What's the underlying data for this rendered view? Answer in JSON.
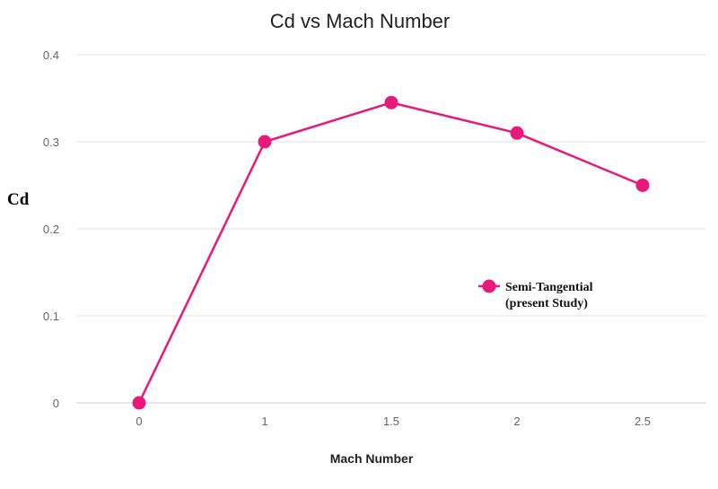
{
  "chart_data": {
    "type": "line",
    "title": "Cd vs Mach Number",
    "xlabel": "Mach Number",
    "ylabel": "Cd",
    "categories": [
      "0",
      "1",
      "1.5",
      "2",
      "2.5"
    ],
    "ylim": [
      0,
      0.4
    ],
    "yticks": [
      "0",
      "0.1",
      "0.2",
      "0.3",
      "0.4"
    ],
    "grid": true,
    "legend_position": "right",
    "series": [
      {
        "name_lines": [
          "Semi-Tangential",
          "(present Study)"
        ],
        "values": [
          0,
          0.3,
          0.345,
          0.31,
          0.25
        ],
        "color": "#e8197a"
      }
    ]
  }
}
